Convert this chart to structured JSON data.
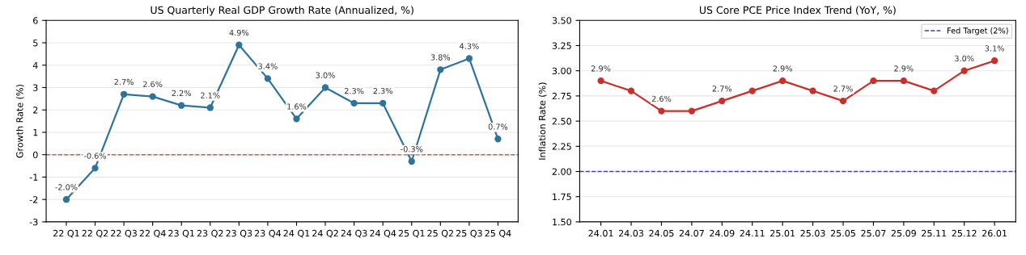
{
  "chart_data": [
    {
      "type": "line",
      "title": "US Quarterly Real GDP Growth Rate (Annualized, %)",
      "ylabel": "Growth Rate (%)",
      "categories": [
        "22 Q1",
        "22 Q2",
        "22 Q3",
        "22 Q4",
        "23 Q1",
        "23 Q2",
        "23 Q3",
        "23 Q4",
        "24 Q1",
        "24 Q2",
        "24 Q3",
        "24 Q4",
        "25 Q1",
        "25 Q2",
        "25 Q3",
        "25 Q4"
      ],
      "series": [
        {
          "color": "#2e7499",
          "values": [
            -2.0,
            -0.6,
            2.7,
            2.6,
            2.2,
            2.1,
            4.9,
            3.4,
            1.6,
            3.0,
            2.3,
            2.3,
            -0.3,
            3.8,
            4.3,
            0.7
          ],
          "value_labels": [
            "-2.0%",
            "-0.6%",
            "2.7%",
            "2.6%",
            "2.2%",
            "2.1%",
            "4.9%",
            "3.4%",
            "1.6%",
            "3.0%",
            "2.3%",
            "2.3%",
            "-0.3%",
            "3.8%",
            "4.3%",
            "0.7%"
          ]
        }
      ],
      "ylim": [
        -3,
        6
      ],
      "yticks": [
        -3,
        -2,
        -1,
        0,
        1,
        2,
        3,
        4,
        5,
        6
      ],
      "grid": "y",
      "marker": "circle",
      "line_style": "solid",
      "ref_lines": [
        {
          "axis": "y",
          "value": 0,
          "color": "#d9534f",
          "line_style": "dashed"
        }
      ]
    },
    {
      "type": "line",
      "title": "US Core PCE Price Index Trend (YoY, %)",
      "ylabel": "Inflation Rate (%)",
      "categories": [
        "24.01",
        "24.03",
        "24.05",
        "24.07",
        "24.09",
        "24.11",
        "25.01",
        "25.03",
        "25.05",
        "25.07",
        "25.09",
        "25.11",
        "25.12",
        "26.01"
      ],
      "series": [
        {
          "color": "#c9302c",
          "values": [
            2.9,
            2.8,
            2.6,
            2.6,
            2.7,
            2.8,
            2.9,
            2.8,
            2.7,
            2.9,
            2.9,
            2.8,
            3.0,
            3.1
          ],
          "value_labels": [
            "2.9%",
            null,
            "2.6%",
            null,
            "2.7%",
            null,
            "2.9%",
            null,
            "2.7%",
            null,
            "2.9%",
            null,
            "3.0%",
            "3.1%"
          ]
        }
      ],
      "ylim": [
        1.5,
        3.5
      ],
      "yticks": [
        {
          "value": 1.5,
          "label": "1.50"
        },
        {
          "value": 1.75,
          "label": "1.75"
        },
        {
          "value": 2.0,
          "label": "2.00"
        },
        {
          "value": 2.25,
          "label": "2.25"
        },
        {
          "value": 2.5,
          "label": "2.50"
        },
        {
          "value": 2.75,
          "label": "2.75"
        },
        {
          "value": 3.0,
          "label": "3.00"
        },
        {
          "value": 3.25,
          "label": "3.25"
        },
        {
          "value": 3.5,
          "label": "3.50"
        }
      ],
      "grid": "y",
      "marker": "circle",
      "line_style": "solid",
      "legend": "top right",
      "ref_lines": [
        {
          "axis": "y",
          "value": 2.0,
          "label": "Fed Target (2%)",
          "color": "#4040b0",
          "line_style": "dashed"
        }
      ]
    }
  ]
}
